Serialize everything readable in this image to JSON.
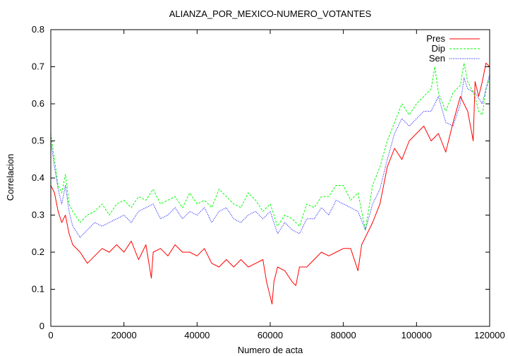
{
  "chart_data": {
    "type": "line",
    "title": "ALIANZA_POR_MEXICO-NUMERO_VOTANTES",
    "xlabel": "Numero de acta",
    "ylabel": "Correlacion",
    "xlim": [
      0,
      120000
    ],
    "ylim": [
      0,
      0.8
    ],
    "x_ticks": [
      0,
      20000,
      40000,
      60000,
      80000,
      100000,
      120000
    ],
    "x_tick_labels": [
      "0",
      "20000",
      "40000",
      "60000",
      "80000",
      "100000",
      "120000"
    ],
    "y_ticks": [
      0,
      0.1,
      0.2,
      0.3,
      0.4,
      0.5,
      0.6,
      0.7,
      0.8
    ],
    "y_tick_labels": [
      "0",
      "0.1",
      "0.2",
      "0.3",
      "0.4",
      "0.5",
      "0.6",
      "0.7",
      "0.8"
    ],
    "grid": false,
    "legend_position": "top-right",
    "series": [
      {
        "name": "Pres",
        "color": "#ff0000",
        "style": "solid",
        "x": [
          0,
          1000,
          2000,
          3000,
          4000,
          5000,
          6000,
          8000,
          10000,
          12000,
          14000,
          16000,
          18000,
          20000,
          22000,
          24000,
          26000,
          27500,
          28000,
          30000,
          32000,
          34000,
          36000,
          38000,
          40000,
          42000,
          44000,
          46000,
          48000,
          50000,
          52000,
          54000,
          56000,
          58000,
          59000,
          60000,
          60500,
          61000,
          62000,
          64000,
          66000,
          67000,
          68000,
          70000,
          72000,
          74000,
          76000,
          78000,
          80000,
          82000,
          84000,
          85000,
          86000,
          88000,
          90000,
          92000,
          94000,
          96000,
          98000,
          100000,
          102000,
          104000,
          106000,
          108000,
          110000,
          112000,
          114000,
          115500,
          116000,
          117000,
          118000,
          119000,
          120000
        ],
        "y": [
          0.38,
          0.36,
          0.31,
          0.28,
          0.3,
          0.25,
          0.22,
          0.2,
          0.17,
          0.19,
          0.21,
          0.2,
          0.22,
          0.2,
          0.23,
          0.18,
          0.22,
          0.13,
          0.2,
          0.21,
          0.19,
          0.22,
          0.2,
          0.2,
          0.19,
          0.21,
          0.17,
          0.16,
          0.18,
          0.16,
          0.18,
          0.16,
          0.17,
          0.18,
          0.12,
          0.08,
          0.06,
          0.12,
          0.16,
          0.15,
          0.12,
          0.11,
          0.16,
          0.16,
          0.18,
          0.2,
          0.19,
          0.2,
          0.21,
          0.21,
          0.15,
          0.22,
          0.24,
          0.28,
          0.33,
          0.43,
          0.48,
          0.45,
          0.5,
          0.52,
          0.54,
          0.5,
          0.52,
          0.47,
          0.55,
          0.62,
          0.58,
          0.5,
          0.66,
          0.62,
          0.66,
          0.71,
          0.7
        ]
      },
      {
        "name": "Dip",
        "color": "#00ff00",
        "style": "dashed",
        "x": [
          0,
          1000,
          2000,
          3000,
          4000,
          5000,
          6000,
          8000,
          10000,
          12000,
          14000,
          16000,
          18000,
          20000,
          22000,
          24000,
          26000,
          28000,
          30000,
          32000,
          34000,
          36000,
          38000,
          40000,
          42000,
          44000,
          46000,
          48000,
          50000,
          52000,
          54000,
          56000,
          58000,
          60000,
          62000,
          64000,
          66000,
          68000,
          70000,
          72000,
          74000,
          76000,
          78000,
          80000,
          82000,
          84000,
          86000,
          88000,
          90000,
          92000,
          94000,
          96000,
          98000,
          100000,
          102000,
          104000,
          105000,
          106000,
          108000,
          110000,
          112000,
          113000,
          114000,
          116000,
          117000,
          118000,
          119000,
          120000
        ],
        "y": [
          0.52,
          0.45,
          0.38,
          0.36,
          0.41,
          0.33,
          0.31,
          0.28,
          0.3,
          0.31,
          0.33,
          0.3,
          0.33,
          0.34,
          0.32,
          0.35,
          0.34,
          0.37,
          0.33,
          0.34,
          0.35,
          0.32,
          0.36,
          0.33,
          0.34,
          0.32,
          0.37,
          0.35,
          0.33,
          0.32,
          0.36,
          0.34,
          0.31,
          0.33,
          0.27,
          0.3,
          0.29,
          0.27,
          0.33,
          0.32,
          0.35,
          0.35,
          0.38,
          0.38,
          0.34,
          0.36,
          0.26,
          0.38,
          0.43,
          0.5,
          0.55,
          0.6,
          0.57,
          0.6,
          0.62,
          0.64,
          0.7,
          0.63,
          0.58,
          0.63,
          0.65,
          0.71,
          0.66,
          0.62,
          0.58,
          0.57,
          0.64,
          0.67
        ]
      },
      {
        "name": "Sen",
        "color": "#0000ff",
        "style": "dotted",
        "x": [
          0,
          1000,
          2000,
          3000,
          4000,
          5000,
          6000,
          8000,
          10000,
          12000,
          14000,
          16000,
          18000,
          20000,
          22000,
          24000,
          26000,
          28000,
          30000,
          32000,
          34000,
          36000,
          38000,
          40000,
          42000,
          44000,
          46000,
          48000,
          50000,
          52000,
          54000,
          56000,
          58000,
          60000,
          62000,
          64000,
          66000,
          68000,
          70000,
          72000,
          74000,
          76000,
          78000,
          80000,
          82000,
          84000,
          86000,
          88000,
          90000,
          92000,
          94000,
          96000,
          98000,
          100000,
          102000,
          104000,
          106000,
          108000,
          110000,
          112000,
          113000,
          114000,
          116000,
          118000,
          119000,
          120000
        ],
        "y": [
          0.5,
          0.43,
          0.37,
          0.33,
          0.38,
          0.31,
          0.27,
          0.24,
          0.26,
          0.28,
          0.27,
          0.28,
          0.29,
          0.3,
          0.28,
          0.31,
          0.32,
          0.33,
          0.29,
          0.3,
          0.32,
          0.29,
          0.31,
          0.3,
          0.32,
          0.28,
          0.31,
          0.32,
          0.29,
          0.28,
          0.3,
          0.31,
          0.29,
          0.31,
          0.25,
          0.28,
          0.26,
          0.25,
          0.29,
          0.29,
          0.32,
          0.3,
          0.34,
          0.33,
          0.32,
          0.31,
          0.26,
          0.33,
          0.37,
          0.45,
          0.52,
          0.56,
          0.54,
          0.56,
          0.58,
          0.58,
          0.62,
          0.55,
          0.54,
          0.6,
          0.67,
          0.64,
          0.63,
          0.6,
          0.64,
          0.68
        ]
      }
    ]
  }
}
